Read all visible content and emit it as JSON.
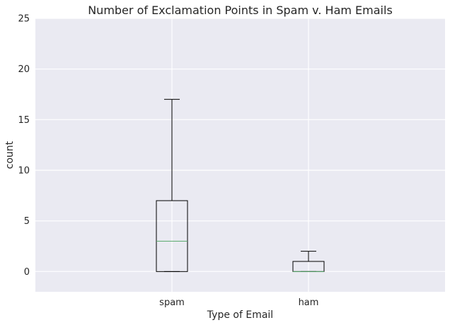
{
  "chart_data": {
    "type": "box",
    "title": "Number of Exclamation Points in Spam v. Ham Emails",
    "xlabel": "Type of Email",
    "ylabel": "count",
    "ylim": [
      -2,
      25
    ],
    "yticks": [
      "0",
      "5",
      "10",
      "15",
      "20",
      "25"
    ],
    "categories": [
      "spam",
      "ham"
    ],
    "boxes": [
      {
        "category": "spam",
        "whisker_low": 0,
        "q1": 0,
        "median": 3,
        "q3": 7,
        "whisker_high": 17
      },
      {
        "category": "ham",
        "whisker_low": 0,
        "q1": 0,
        "median": 0,
        "q3": 1,
        "whisker_high": 2
      }
    ],
    "grid": true,
    "colors": {
      "plot_background": "#EAEAF2",
      "grid": "#FFFFFF",
      "box_edge": "#000000",
      "median": "#55A868"
    }
  }
}
